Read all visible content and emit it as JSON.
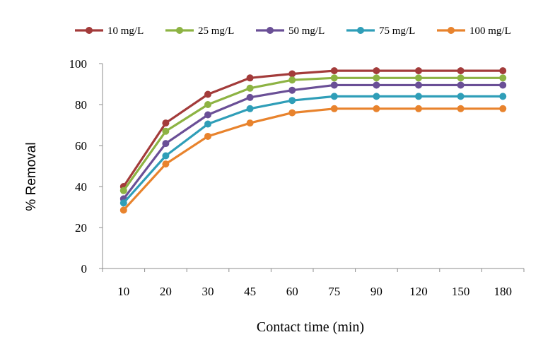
{
  "chart_data": {
    "type": "line",
    "title": "",
    "xlabel": "Contact time (min)",
    "ylabel": "% Removal",
    "categories": [
      "10",
      "20",
      "30",
      "45",
      "60",
      "75",
      "90",
      "120",
      "150",
      "180"
    ],
    "ylim": [
      0,
      100
    ],
    "yticks": [
      0,
      20,
      40,
      60,
      80,
      100
    ],
    "grid": false,
    "legend_position": "top",
    "series": [
      {
        "name": "10 mg/L",
        "color": "#a33b3a",
        "values": [
          40,
          71,
          85,
          93,
          95,
          96.5,
          96.5,
          96.5,
          96.5,
          96.5
        ]
      },
      {
        "name": "25 mg/L",
        "color": "#8db343",
        "values": [
          38,
          67,
          80,
          88,
          92,
          93,
          93,
          93,
          93,
          93
        ]
      },
      {
        "name": "50 mg/L",
        "color": "#6a4f96",
        "values": [
          34,
          61,
          75,
          83.5,
          87,
          89.5,
          89.5,
          89.5,
          89.5,
          89.5
        ]
      },
      {
        "name": "75 mg/L",
        "color": "#2f9eb8",
        "values": [
          32,
          55,
          70.5,
          78,
          82,
          84,
          84,
          84,
          84,
          84
        ]
      },
      {
        "name": "100 mg/L",
        "color": "#e8832d",
        "values": [
          28.5,
          51,
          64.5,
          71,
          76,
          78,
          78,
          78,
          78,
          78
        ]
      }
    ]
  }
}
